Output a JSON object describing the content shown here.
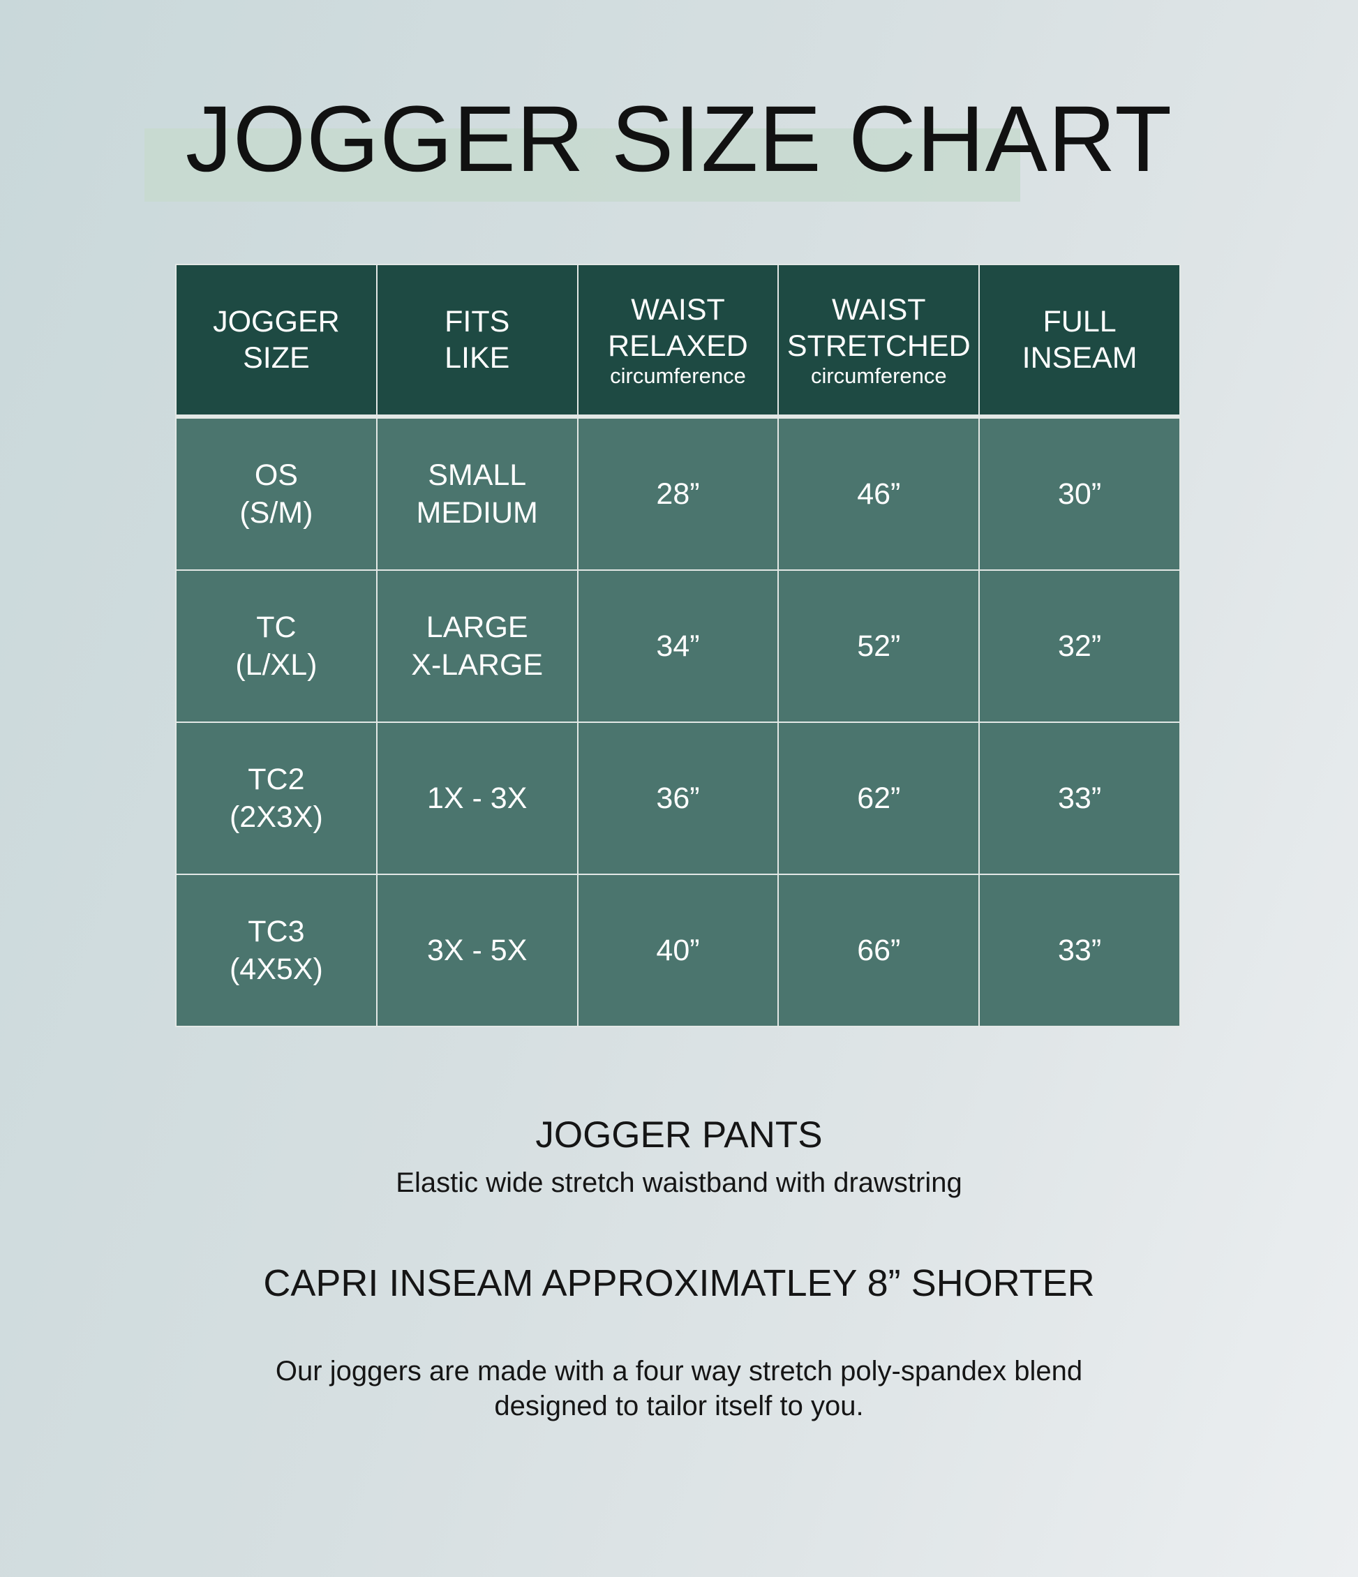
{
  "title": "JOGGER SIZE CHART",
  "colors": {
    "header": "#1e4a43",
    "body": "#4b756e",
    "highlight": "#c7d9cf"
  },
  "table": {
    "headers": [
      {
        "line1": "JOGGER",
        "line2": "SIZE",
        "sub": ""
      },
      {
        "line1": "FITS",
        "line2": "LIKE",
        "sub": ""
      },
      {
        "line1": "WAIST",
        "line2": "RELAXED",
        "sub": "circumference"
      },
      {
        "line1": "WAIST",
        "line2": "STRETCHED",
        "sub": "circumference"
      },
      {
        "line1": "FULL",
        "line2": "INSEAM",
        "sub": ""
      }
    ],
    "rows": [
      {
        "size1": "OS",
        "size2": "(S/M)",
        "fit1": "SMALL",
        "fit2": "MEDIUM",
        "relaxed": "28”",
        "stretched": "46”",
        "inseam": "30”"
      },
      {
        "size1": "TC",
        "size2": "(L/XL)",
        "fit1": "LARGE",
        "fit2": "X-LARGE",
        "relaxed": "34”",
        "stretched": "52”",
        "inseam": "32”"
      },
      {
        "size1": "TC2",
        "size2": "(2X3X)",
        "fit1": "1X - 3X",
        "fit2": "",
        "relaxed": "36”",
        "stretched": "62”",
        "inseam": "33”"
      },
      {
        "size1": "TC3",
        "size2": "(4X5X)",
        "fit1": "3X - 5X",
        "fit2": "",
        "relaxed": "40”",
        "stretched": "66”",
        "inseam": "33”"
      }
    ]
  },
  "footer": {
    "heading": "JOGGER PANTS",
    "subheading": "Elastic wide stretch waistband with drawstring",
    "capri_note": "CAPRI INSEAM APPROXIMATLEY 8” SHORTER",
    "description_line1": "Our joggers are made with a four way stretch poly-spandex blend",
    "description_line2": "designed to tailor itself to you."
  }
}
